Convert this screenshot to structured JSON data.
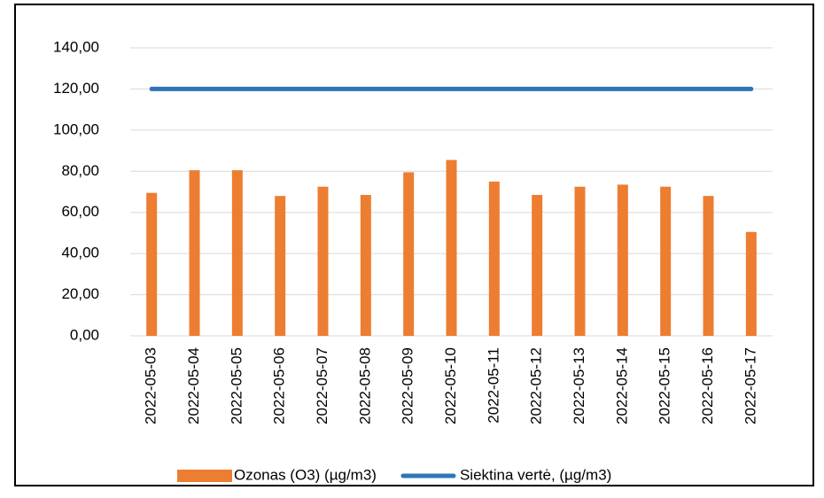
{
  "chart_data": {
    "type": "bar",
    "categories": [
      "2022-05-03",
      "2022-05-04",
      "2022-05-05",
      "2022-05-06",
      "2022-05-07",
      "2022-05-08",
      "2022-05-09",
      "2022-05-10",
      "2022-05-11",
      "2022-05-12",
      "2022-05-13",
      "2022-05-14",
      "2022-05-15",
      "2022-05-16",
      "2022-05-17"
    ],
    "series": [
      {
        "name": "Ozonas (O3) (µg/m3)",
        "color": "#ed7d31",
        "values": [
          69.5,
          80.5,
          80.5,
          68,
          72.5,
          68.5,
          79.5,
          85.5,
          75,
          68.5,
          72.5,
          73.5,
          72.5,
          68,
          50.5
        ]
      },
      {
        "name": "Siektina vertė, (µg/m3)",
        "color": "#2e75b6",
        "type": "line",
        "values": [
          120,
          120,
          120,
          120,
          120,
          120,
          120,
          120,
          120,
          120,
          120,
          120,
          120,
          120,
          120
        ]
      }
    ],
    "ylim": [
      0,
      140
    ],
    "yticks": [
      {
        "value": 0,
        "label": "0,00"
      },
      {
        "value": 20,
        "label": "20,00"
      },
      {
        "value": 40,
        "label": "40,00"
      },
      {
        "value": 60,
        "label": "60,00"
      },
      {
        "value": 80,
        "label": "80,00"
      },
      {
        "value": 100,
        "label": "100,00"
      },
      {
        "value": 120,
        "label": "120,00"
      },
      {
        "value": 140,
        "label": "140,00"
      }
    ],
    "grid": true,
    "legend": "bottom"
  }
}
